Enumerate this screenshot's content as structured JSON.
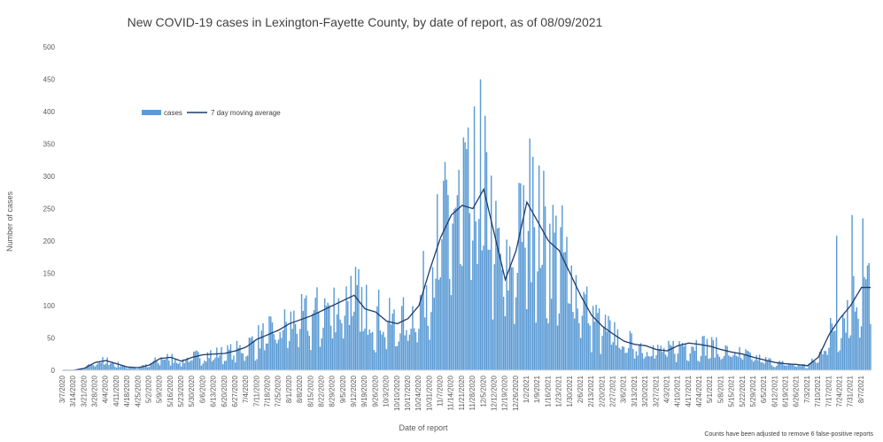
{
  "chart_data": {
    "type": "bar",
    "title": "New COVID-19 cases in Lexington-Fayette County, by date of report, as of 08/09/2021",
    "xlabel": "Date of report",
    "ylabel": "Number of cases",
    "ylim": [
      0,
      500
    ],
    "yticks": [
      0,
      50,
      100,
      150,
      200,
      250,
      300,
      350,
      400,
      450,
      500
    ],
    "grid": false,
    "legend_position": "top-left",
    "note": "Counts have been adjusted to remove 6 false-positive reports",
    "colors": {
      "bars": "#5b9bd5",
      "line": "#1f3a6e"
    },
    "x_ticks": [
      "3/7/2020",
      "3/14/2020",
      "3/21/2020",
      "3/28/2020",
      "4/4/2020",
      "4/11/2020",
      "4/18/2020",
      "4/25/2020",
      "5/2/2020",
      "5/9/2020",
      "5/16/2020",
      "5/23/2020",
      "5/30/2020",
      "6/6/2020",
      "6/13/2020",
      "6/20/2020",
      "6/27/2020",
      "7/4/2020",
      "7/11/2020",
      "7/18/2020",
      "7/25/2020",
      "8/1/2020",
      "8/8/2020",
      "8/15/2020",
      "8/22/2020",
      "8/29/2020",
      "9/5/2020",
      "9/12/2020",
      "9/19/2020",
      "9/26/2020",
      "10/3/2020",
      "10/10/2020",
      "10/17/2020",
      "10/24/2020",
      "10/31/2020",
      "11/7/2020",
      "11/14/2020",
      "11/21/2020",
      "11/28/2020",
      "12/5/2020",
      "12/12/2020",
      "12/19/2020",
      "12/26/2020",
      "1/2/2021",
      "1/9/2021",
      "1/16/2021",
      "1/23/2021",
      "1/30/2021",
      "2/6/2021",
      "2/13/2021",
      "2/20/2021",
      "2/27/2021",
      "3/6/2021",
      "3/13/2021",
      "3/20/2021",
      "3/27/2021",
      "4/3/2021",
      "4/10/2021",
      "4/17/2021",
      "4/24/2021",
      "5/1/2021",
      "5/8/2021",
      "5/15/2021",
      "5/22/2021",
      "5/29/2021",
      "6/5/2021",
      "6/12/2021",
      "6/19/2021",
      "6/26/2021",
      "7/3/2021",
      "7/10/2021",
      "7/17/2021",
      "7/24/2021",
      "7/31/2021",
      "8/7/2021"
    ],
    "weekly_avg_7day": [
      0,
      0,
      3,
      12,
      15,
      10,
      5,
      4,
      8,
      18,
      20,
      14,
      20,
      24,
      25,
      26,
      30,
      36,
      48,
      55,
      62,
      72,
      78,
      84,
      92,
      100,
      108,
      116,
      95,
      90,
      76,
      72,
      80,
      100,
      155,
      205,
      240,
      255,
      250,
      280,
      210,
      140,
      185,
      260,
      230,
      200,
      185,
      150,
      115,
      85,
      68,
      56,
      45,
      40,
      38,
      32,
      30,
      38,
      42,
      40,
      37,
      32,
      28,
      25,
      20,
      16,
      12,
      10,
      9,
      7,
      20,
      55,
      80,
      100,
      128
    ],
    "series": [
      {
        "name": "cases",
        "type": "bar"
      },
      {
        "name": "7 day moving average",
        "type": "line"
      }
    ],
    "peak_values": [
      {
        "date": "11/22/2020",
        "value": 360
      },
      {
        "date": "11/29/2020",
        "value": 408
      },
      {
        "date": "12/3/2020",
        "value": 450
      },
      {
        "date": "1/6/2021",
        "value": 330
      },
      {
        "date": "7/22/2021",
        "value": 208
      },
      {
        "date": "8/1/2021",
        "value": 240
      },
      {
        "date": "8/8/2021",
        "value": 235
      }
    ]
  }
}
